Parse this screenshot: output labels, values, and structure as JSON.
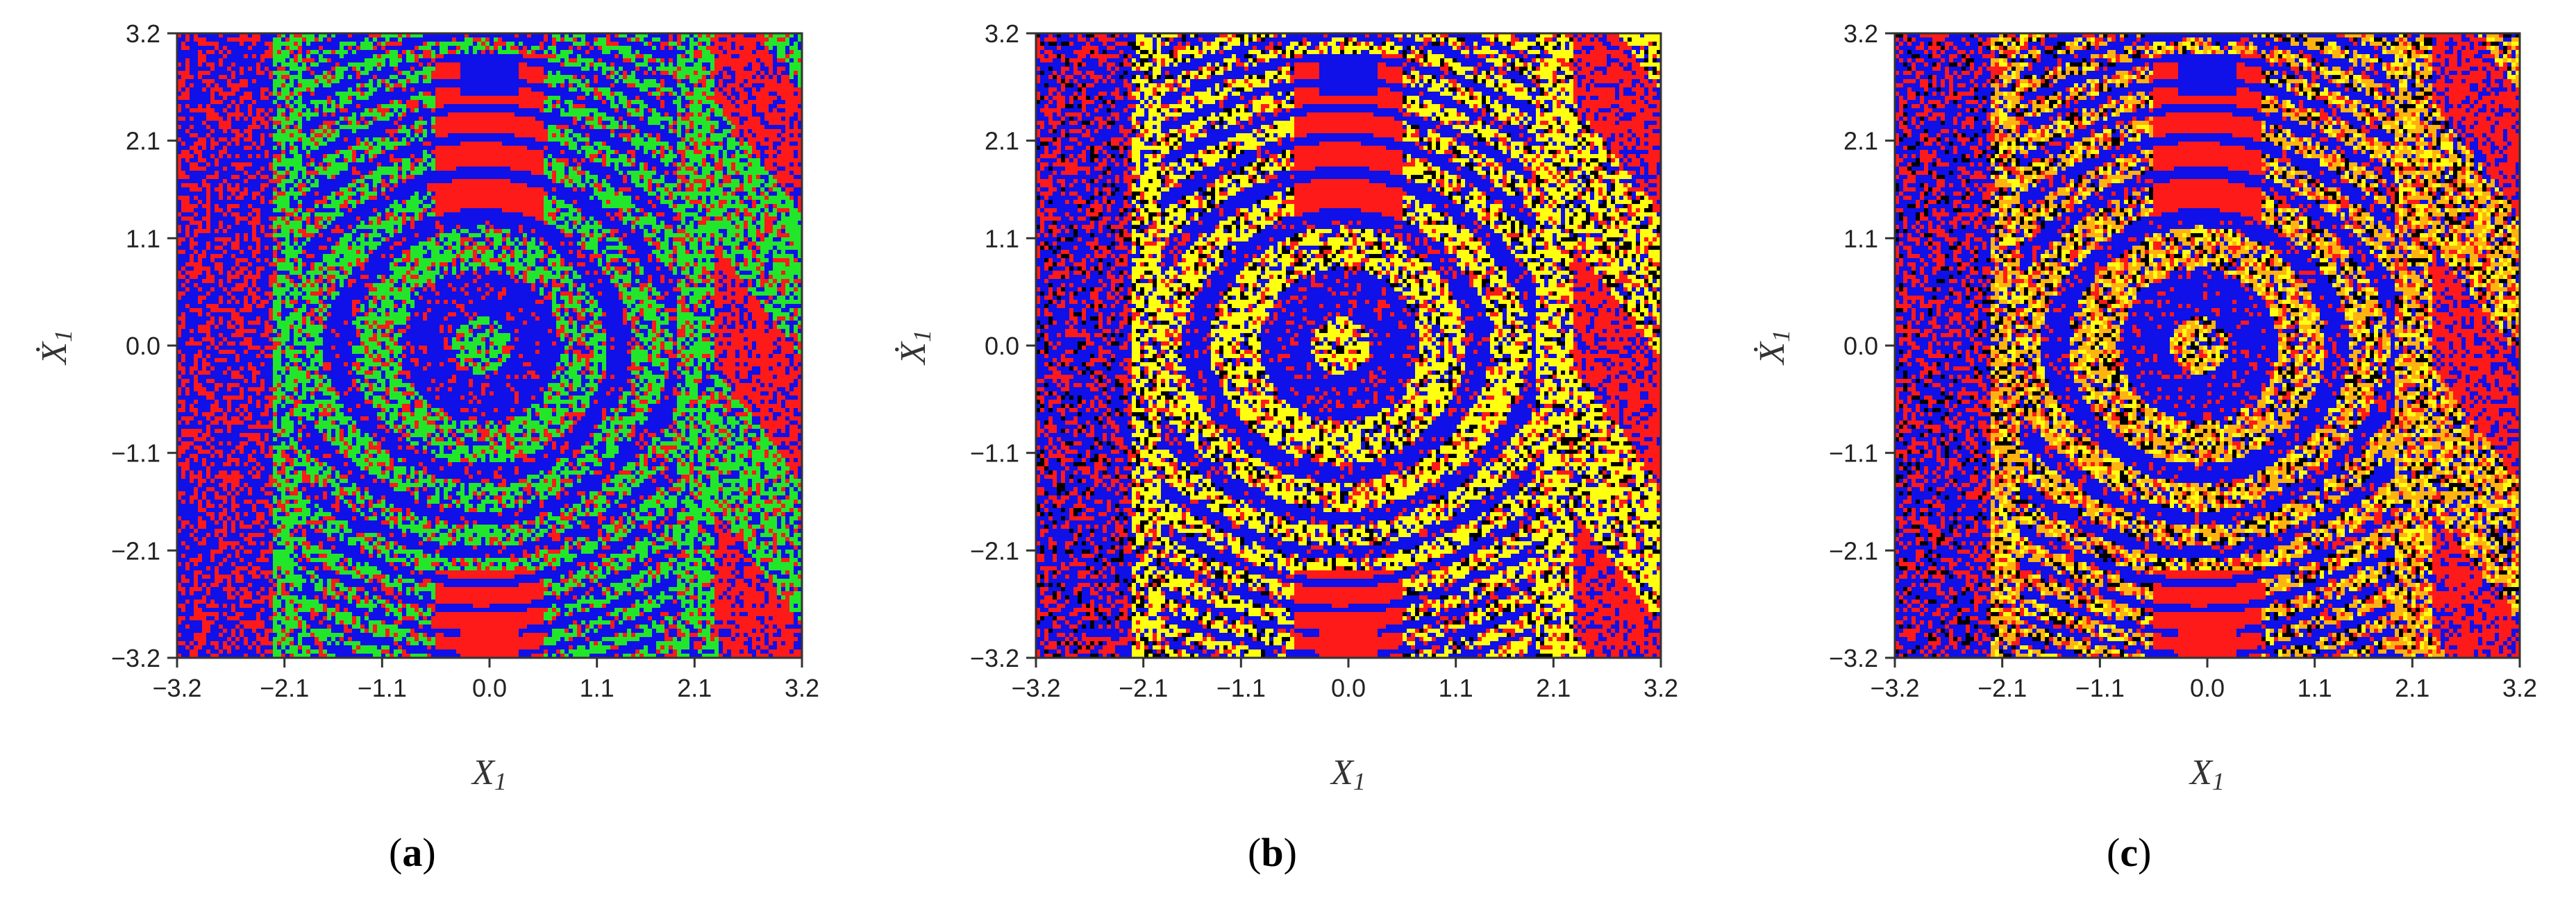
{
  "colors": {
    "red": "#ff1a1a",
    "blue": "#1010e8",
    "green": "#22e62a",
    "yellow": "#ffff10",
    "orange": "#ffb310",
    "black": "#000000"
  },
  "chart_data": [
    {
      "type": "heatmap",
      "panel_label": "a",
      "xlabel": "X1",
      "ylabel": "Ẋ1",
      "xlim": [
        -3.2,
        3.2
      ],
      "ylim": [
        -3.2,
        3.2
      ],
      "xticks": [
        "-3.2",
        "-2.1",
        "-1.1",
        "0.0",
        "1.1",
        "2.1",
        "3.2"
      ],
      "yticks": [
        "3.2",
        "2.1",
        "1.1",
        "0.0",
        "-1.1",
        "-2.1",
        "-3.2"
      ],
      "color_classes": [
        "red",
        "blue",
        "green"
      ]
    },
    {
      "type": "heatmap",
      "panel_label": "b",
      "xlabel": "X1",
      "ylabel": "Ẋ1",
      "xlim": [
        -3.2,
        3.2
      ],
      "ylim": [
        -3.2,
        3.2
      ],
      "xticks": [
        "-3.2",
        "-2.1",
        "-1.1",
        "0.0",
        "1.1",
        "2.1",
        "3.2"
      ],
      "yticks": [
        "3.2",
        "2.1",
        "1.1",
        "0.0",
        "-1.1",
        "-2.1",
        "-3.2"
      ],
      "color_classes": [
        "red",
        "blue",
        "yellow",
        "black"
      ]
    },
    {
      "type": "heatmap",
      "panel_label": "c",
      "xlabel": "X1",
      "ylabel": "Ẋ1",
      "xlim": [
        -3.2,
        3.2
      ],
      "ylim": [
        -3.2,
        3.2
      ],
      "xticks": [
        "-3.2",
        "-2.1",
        "-1.1",
        "0.0",
        "1.1",
        "2.1",
        "3.2"
      ],
      "yticks": [
        "3.2",
        "2.1",
        "1.1",
        "0.0",
        "-1.1",
        "-2.1",
        "-3.2"
      ],
      "color_classes": [
        "red",
        "blue",
        "orange",
        "yellow",
        "black"
      ]
    }
  ]
}
